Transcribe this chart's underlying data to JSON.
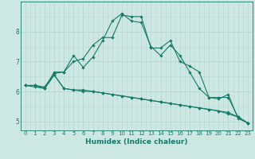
{
  "xlabel": "Humidex (Indice chaleur)",
  "background_color": "#cde8e2",
  "grid_color": "#b8d8d2",
  "line_color": "#1a7a6a",
  "x_values": [
    0,
    1,
    2,
    3,
    4,
    5,
    6,
    7,
    8,
    9,
    10,
    11,
    12,
    13,
    14,
    15,
    16,
    17,
    18,
    19,
    20,
    21,
    22,
    23
  ],
  "series": [
    [
      6.2,
      6.2,
      6.15,
      6.6,
      6.65,
      7.0,
      7.1,
      7.55,
      7.8,
      7.8,
      8.55,
      8.5,
      8.5,
      7.45,
      7.45,
      7.7,
      7.0,
      6.85,
      6.65,
      5.8,
      5.75,
      5.9,
      5.1,
      4.95
    ],
    [
      6.2,
      6.15,
      6.1,
      6.65,
      6.65,
      7.2,
      6.8,
      7.15,
      7.7,
      8.35,
      8.6,
      8.35,
      8.3,
      7.5,
      7.2,
      7.55,
      7.2,
      6.65,
      6.1,
      5.8,
      5.8,
      5.8,
      5.15,
      4.95
    ],
    [
      6.2,
      6.2,
      6.1,
      6.55,
      6.1,
      6.05,
      6.0,
      6.0,
      5.95,
      5.9,
      5.85,
      5.8,
      5.75,
      5.7,
      5.65,
      5.6,
      5.55,
      5.5,
      5.45,
      5.4,
      5.35,
      5.25,
      5.15,
      4.95
    ],
    [
      6.2,
      6.2,
      6.1,
      6.55,
      6.1,
      6.05,
      6.05,
      6.0,
      5.95,
      5.9,
      5.85,
      5.8,
      5.75,
      5.7,
      5.65,
      5.6,
      5.55,
      5.5,
      5.45,
      5.4,
      5.35,
      5.3,
      5.15,
      4.95
    ]
  ],
  "ylim": [
    4.7,
    9.0
  ],
  "yticks": [
    5,
    6,
    7,
    8
  ],
  "xtick_fontsize": 5.0,
  "ytick_fontsize": 5.5,
  "xlabel_fontsize": 6.5
}
